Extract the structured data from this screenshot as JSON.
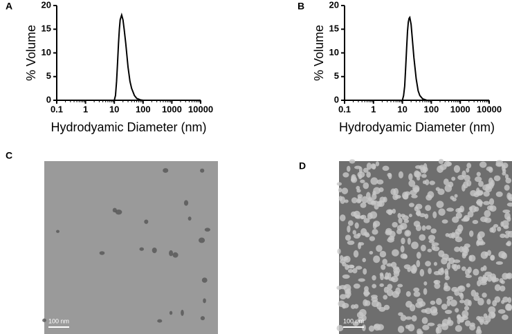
{
  "chart_data": [
    {
      "type": "line",
      "label": "A",
      "ylabel": "% Volume",
      "xlabel": "Hydrodyamic Diameter (nm)",
      "color": "#000000",
      "log_x": true,
      "xlim": [
        0.1,
        10000
      ],
      "xticks": [
        0.1,
        1,
        10,
        100,
        1000,
        10000
      ],
      "ylim": [
        0,
        20
      ],
      "yticks": [
        0,
        5,
        10,
        15,
        20
      ],
      "x": [
        0.1,
        10,
        11,
        12,
        13,
        14,
        15,
        16,
        18,
        20,
        22,
        25,
        30,
        35,
        40,
        50,
        60,
        80,
        100,
        10000
      ],
      "values": [
        0,
        0,
        1,
        4,
        8,
        12,
        15,
        17,
        18,
        17,
        15,
        12,
        7,
        4,
        2.5,
        1,
        0.4,
        0.1,
        0,
        0
      ]
    },
    {
      "type": "line",
      "label": "B",
      "ylabel": "% Volume",
      "xlabel": "Hydrodyamic Diameter (nm)",
      "color": "#000000",
      "log_x": true,
      "xlim": [
        0.1,
        10000
      ],
      "xticks": [
        0.1,
        1,
        10,
        100,
        1000,
        10000
      ],
      "ylim": [
        0,
        20
      ],
      "yticks": [
        0,
        5,
        10,
        15,
        20
      ],
      "x": [
        0.1,
        10,
        11,
        12,
        13,
        14,
        15,
        16,
        17,
        18,
        20,
        22,
        25,
        30,
        35,
        40,
        50,
        70,
        10000
      ],
      "values": [
        0,
        0,
        1,
        3,
        7,
        11,
        14.5,
        16.5,
        17.3,
        17.5,
        16,
        13,
        9,
        4.5,
        2,
        1,
        0.3,
        0,
        0
      ]
    }
  ],
  "panels": [
    {
      "label": "C",
      "scale_bar": "100 nm"
    },
    {
      "label": "D",
      "scale_bar": "100 nm"
    }
  ]
}
